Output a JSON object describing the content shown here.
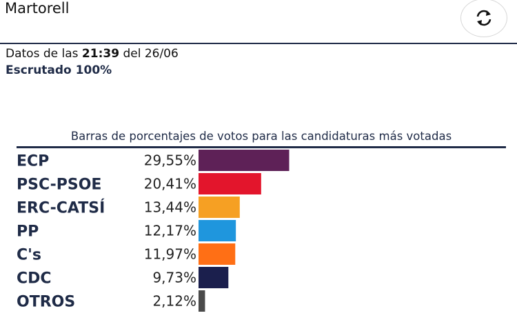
{
  "header": {
    "place": "Martorell",
    "refresh_icon": "refresh-icon"
  },
  "meta": {
    "prefix": "Datos de las",
    "time": "21:39",
    "date_text": "del 26/06",
    "status": "Escrutado 100%"
  },
  "chart_data": {
    "type": "bar",
    "orientation": "horizontal",
    "title": "Barras de porcentajes de votos para las candidaturas más votadas",
    "categories": [
      "ECP",
      "PSC-PSOE",
      "ERC-CATSÍ",
      "PP",
      "C's",
      "CDC",
      "OTROS"
    ],
    "values": [
      29.55,
      20.41,
      13.44,
      12.17,
      11.97,
      9.73,
      2.12
    ],
    "value_labels": [
      "29,55%",
      "20,41%",
      "13,44%",
      "12,17%",
      "11,97%",
      "9,73%",
      "2,12%"
    ],
    "colors": [
      "#5e2157",
      "#e3152c",
      "#f6a023",
      "#1f96dd",
      "#ff6f15",
      "#1b1f4d",
      "#4a4a4a"
    ],
    "xlim": [
      0,
      100
    ],
    "grid": false,
    "legend": "none"
  }
}
